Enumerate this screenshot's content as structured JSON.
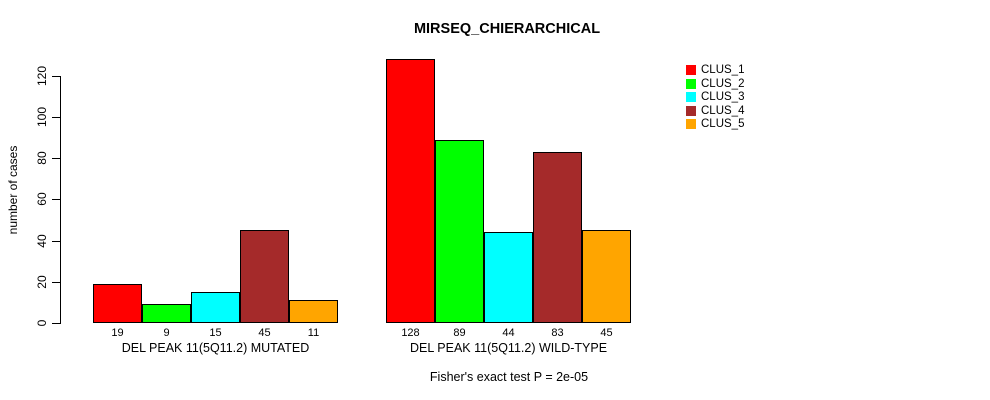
{
  "chart_data": {
    "type": "bar",
    "title": "MIRSEQ_CHIERARCHICAL",
    "ylabel": "number of cases",
    "xlabel": "",
    "categories": [
      "DEL PEAK 11(5Q11.2) MUTATED",
      "DEL PEAK 11(5Q11.2) WILD-TYPE"
    ],
    "series": [
      {
        "name": "CLUS_1",
        "color": "#FF0000",
        "values": [
          19,
          128
        ]
      },
      {
        "name": "CLUS_2",
        "color": "#00FF00",
        "values": [
          9,
          89
        ]
      },
      {
        "name": "CLUS_3",
        "color": "#00FFFF",
        "values": [
          15,
          44
        ]
      },
      {
        "name": "CLUS_4",
        "color": "#A52A2A",
        "values": [
          45,
          83
        ]
      },
      {
        "name": "CLUS_5",
        "color": "#FFA500",
        "values": [
          11,
          45
        ]
      }
    ],
    "yticks": [
      0,
      20,
      40,
      60,
      80,
      100,
      120
    ],
    "ylim": [
      0,
      130
    ],
    "grid": false,
    "legend_position": "top-right",
    "bar_value_labels": true,
    "annotation": "Fisher's exact test P = 2e-05"
  }
}
